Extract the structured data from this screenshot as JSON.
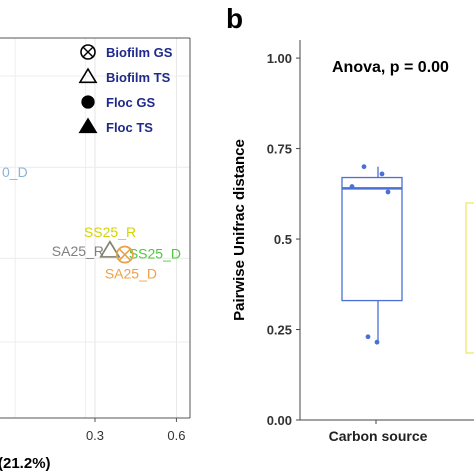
{
  "chart_data": [
    {
      "type": "scatter",
      "panel": "a",
      "partial": true,
      "title": "",
      "xlabel": "(21.2%)",
      "ylabel": "",
      "x_ticks": [
        "0.3",
        "0.6"
      ],
      "x_tick_values": [
        0.3,
        0.6
      ],
      "xlim": [
        -0.05,
        0.65
      ],
      "ylim": [
        0,
        1
      ],
      "grid": true,
      "legend_position": "top-right",
      "legend": [
        {
          "label": "Biofilm GS",
          "marker": "circle-x"
        },
        {
          "label": "Biofilm TS",
          "marker": "triangle-open"
        },
        {
          "label": "Floc GS",
          "marker": "circle-filled"
        },
        {
          "label": "Floc TS",
          "marker": "triangle-filled"
        }
      ],
      "points": [
        {
          "label": "SS25_R",
          "x": 0.355,
          "y": 0.44,
          "marker": "triangle-open",
          "color": "#d4d400"
        },
        {
          "label": "SA25_R",
          "x": 0.355,
          "y": 0.44,
          "marker": "triangle-open",
          "color": "#808080"
        },
        {
          "label": "SS25_D",
          "x": 0.41,
          "y": 0.43,
          "marker": "circle-x",
          "color": "#4fc83c"
        },
        {
          "label": "SA25_D",
          "x": 0.41,
          "y": 0.43,
          "marker": "circle-x",
          "color": "#f0a048"
        }
      ],
      "partial_label": {
        "text": "0_D",
        "color": "#8ab4d8"
      }
    },
    {
      "type": "box",
      "panel": "b",
      "panel_letter": "b",
      "partial": true,
      "annotation": "Anova, p = 0.00",
      "ylabel": "Pairwise Unifrac distance",
      "xlabel": "",
      "categories": [
        "Carbon source"
      ],
      "y_ticks": [
        "0.00",
        "0.25",
        "0.5",
        "0.75",
        "1.00"
      ],
      "y_tick_values": [
        0,
        0.25,
        0.5,
        0.75,
        1.0
      ],
      "ylim": [
        0,
        1.05
      ],
      "boxes": [
        {
          "category": "Carbon source",
          "color": "#4a6fd6",
          "min": 0.21,
          "q1": 0.33,
          "median": 0.64,
          "q3": 0.67,
          "max": 0.7,
          "points": [
            0.7,
            0.68,
            0.645,
            0.63,
            0.23,
            0.215
          ]
        }
      ],
      "partial_box_color": "#f0ec7a"
    }
  ]
}
